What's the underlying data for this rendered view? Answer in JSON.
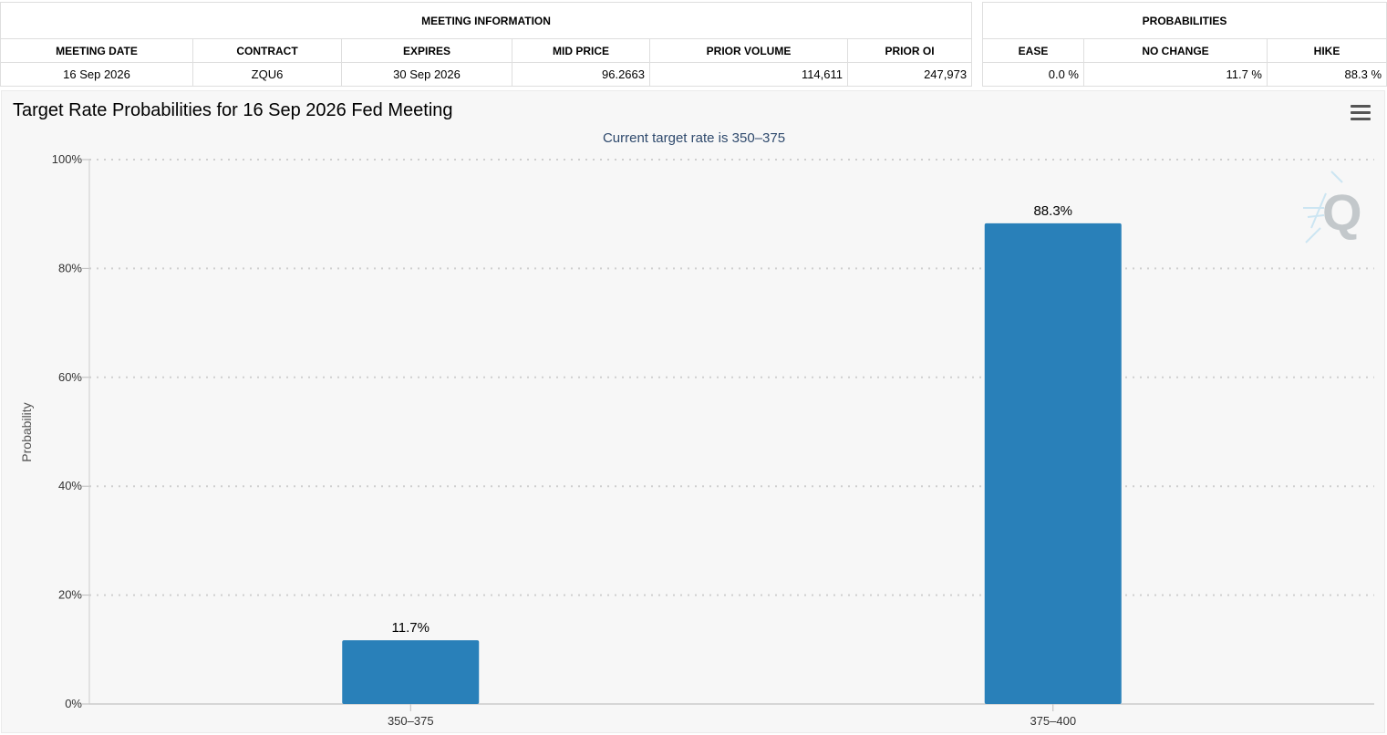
{
  "meeting_info": {
    "group_label": "MEETING INFORMATION",
    "headers": [
      "MEETING DATE",
      "CONTRACT",
      "EXPIRES",
      "MID PRICE",
      "PRIOR VOLUME",
      "PRIOR OI"
    ],
    "values": [
      "16 Sep 2026",
      "ZQU6",
      "30 Sep 2026",
      "96.2663",
      "114,611",
      "247,973"
    ]
  },
  "probabilities": {
    "group_label": "PROBABILITIES",
    "headers": [
      "EASE",
      "NO CHANGE",
      "HIKE"
    ],
    "values": [
      "0.0 %",
      "11.7 %",
      "88.3 %"
    ]
  },
  "chart": {
    "title": "Target Rate Probabilities for 16 Sep 2026 Fed Meeting",
    "menu_icon": "hamburger-menu-icon",
    "watermark_icon": "q-logo-icon"
  },
  "chart_data": {
    "type": "bar",
    "title": "Target Rate Probabilities for 16 Sep 2026 Fed Meeting",
    "subtitle": "Current target rate is 350–375",
    "xlabel": "",
    "ylabel": "Probability",
    "categories": [
      "350–375",
      "375–400"
    ],
    "values": [
      11.7,
      88.3
    ],
    "data_labels": [
      "11.7%",
      "88.3%"
    ],
    "ylim": [
      0,
      100
    ],
    "yticks": [
      0,
      20,
      40,
      60,
      80,
      100
    ],
    "ytick_labels": [
      "0%",
      "20%",
      "40%",
      "60%",
      "80%",
      "100%"
    ],
    "grid": true,
    "bar_color": "#2980b9",
    "subtitle_color": "#2f4a6d"
  }
}
